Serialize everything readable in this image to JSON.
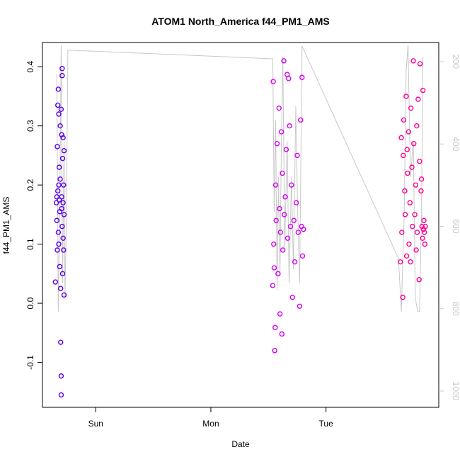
{
  "chart_data": {
    "type": "scatter",
    "title": "ATOM1 North_America f44_PM1_AMS",
    "x_label": "Date",
    "y_label": "f44_PM1_AMS",
    "xlim": [
      12.9,
      95.5
    ],
    "xticks": [
      {
        "value": 24,
        "label": "Sun"
      },
      {
        "value": 48,
        "label": "Mon"
      },
      {
        "value": 72,
        "label": "Tue"
      }
    ],
    "ylim": [
      -0.176,
      0.441
    ],
    "yticks": [
      -0.1,
      {
        "value": 0,
        "label": "0.0"
      },
      0.1,
      0.2,
      0.3,
      0.4
    ],
    "y2lim": [
      1039.6,
      153.5
    ],
    "y2ticks": [
      200,
      400,
      600,
      800,
      1000
    ],
    "y2_color": "#c8c8c8",
    "series": [
      {
        "color": "#5a00e6",
        "x": [
          15.6,
          15.8,
          15.9,
          16.0,
          16.0,
          16.1,
          16.1,
          16.2,
          16.2,
          16.3,
          16.3,
          16.4,
          16.4,
          16.5,
          16.5,
          16.6,
          16.6,
          16.7,
          16.7,
          16.8,
          16.8,
          16.8,
          16.9,
          16.9,
          17.0,
          17.0,
          17.0,
          17.1,
          17.1,
          17.2,
          17.2,
          17.3,
          17.3,
          17.4,
          17.4,
          17.4,
          17.2,
          16.9,
          16.3,
          15.9
        ],
        "values": [
          0.036,
          0.17,
          0.14,
          0.265,
          0.09,
          0.335,
          0.19,
          0.12,
          0.362,
          0.32,
          0.1,
          0.175,
          0.23,
          0.062,
          0.155,
          0.3,
          0.21,
          0.025,
          -0.066,
          -0.123,
          -0.155,
          0.328,
          0.285,
          0.18,
          0.397,
          0.385,
          0.13,
          0.245,
          0.05,
          0.17,
          0.11,
          0.2,
          0.09,
          0.258,
          0.014,
          0.15,
          0.28,
          0.16,
          0.2,
          0.18
        ]
      },
      {
        "color": "#d400f5",
        "x": [
          60.9,
          61.0,
          61.1,
          61.2,
          61.3,
          61.4,
          61.5,
          61.6,
          61.8,
          62.0,
          62.2,
          62.3,
          62.4,
          62.5,
          62.7,
          62.8,
          62.9,
          63.0,
          63.2,
          63.3,
          63.5,
          63.7,
          63.9,
          64.0,
          64.2,
          64.4,
          64.6,
          64.8,
          65.0,
          65.3,
          65.5,
          65.8,
          66.0,
          66.2,
          66.5,
          66.7,
          66.9,
          67.0,
          67.1,
          67.3
        ],
        "values": [
          0.03,
          0.375,
          0.1,
          0.06,
          -0.08,
          -0.041,
          0.2,
          0.14,
          0.27,
          0.05,
          0.33,
          0.16,
          -0.018,
          0.12,
          0.29,
          -0.052,
          0.22,
          0.09,
          0.41,
          0.15,
          0.18,
          0.26,
          0.387,
          0.11,
          0.38,
          0.3,
          0.13,
          0.2,
          0.01,
          0.14,
          0.07,
          0.17,
          0.25,
          0.12,
          -0.005,
          0.31,
          0.13,
          0.382,
          0.08,
          0.125
        ]
      },
      {
        "color": "#ff0090",
        "x": [
          87.5,
          87.7,
          87.8,
          88.0,
          88.1,
          88.2,
          88.4,
          88.5,
          88.7,
          88.8,
          89.0,
          89.2,
          89.3,
          89.5,
          89.7,
          89.9,
          90.0,
          90.2,
          90.3,
          90.5,
          90.7,
          90.9,
          91.0,
          91.2,
          91.4,
          91.5,
          91.6,
          91.8,
          92.0,
          92.1,
          92.2,
          92.3,
          92.4,
          92.5,
          92.6,
          92.7,
          89.6,
          90.8,
          88.9,
          91.9
        ],
        "values": [
          0.07,
          0.28,
          0.12,
          0.01,
          0.25,
          0.31,
          0.19,
          0.15,
          0.35,
          0.08,
          0.22,
          0.29,
          0.1,
          0.17,
          0.33,
          0.23,
          0.13,
          0.41,
          0.27,
          0.15,
          0.2,
          0.3,
          0.12,
          0.345,
          0.04,
          0.24,
          0.405,
          0.19,
          0.13,
          0.11,
          0.36,
          0.125,
          0.14,
          0.12,
          0.1,
          0.13,
          0.07,
          0.09,
          0.26,
          0.21
        ]
      },
      {
        "type": "line",
        "axis": "y2",
        "color": "#c8c8c8",
        "x": [
          15.9,
          16.2,
          16.5,
          16.8,
          17.1,
          17.4,
          17.6,
          17.9,
          18.2,
          60.9,
          61.2,
          61.5,
          61.8,
          62.1,
          62.4,
          62.7,
          63.0,
          63.4,
          63.9,
          64.3,
          64.8,
          65.2,
          65.7,
          66.1,
          66.5,
          67.0,
          87.1,
          87.7,
          88.3,
          88.7,
          89.1,
          89.6,
          90.2,
          90.6,
          91.1,
          91.5,
          91.9,
          92.2
        ],
        "values": [
          231,
          807,
          566,
          160,
          738,
          394,
          773,
          566,
          172,
          193,
          566,
          343,
          756,
          480,
          721,
          394,
          188,
          652,
          394,
          738,
          480,
          704,
          308,
          566,
          738,
          162,
          678,
          807,
          566,
          222,
          160,
          480,
          394,
          773,
          807,
          807,
          566,
          188
        ]
      }
    ]
  }
}
